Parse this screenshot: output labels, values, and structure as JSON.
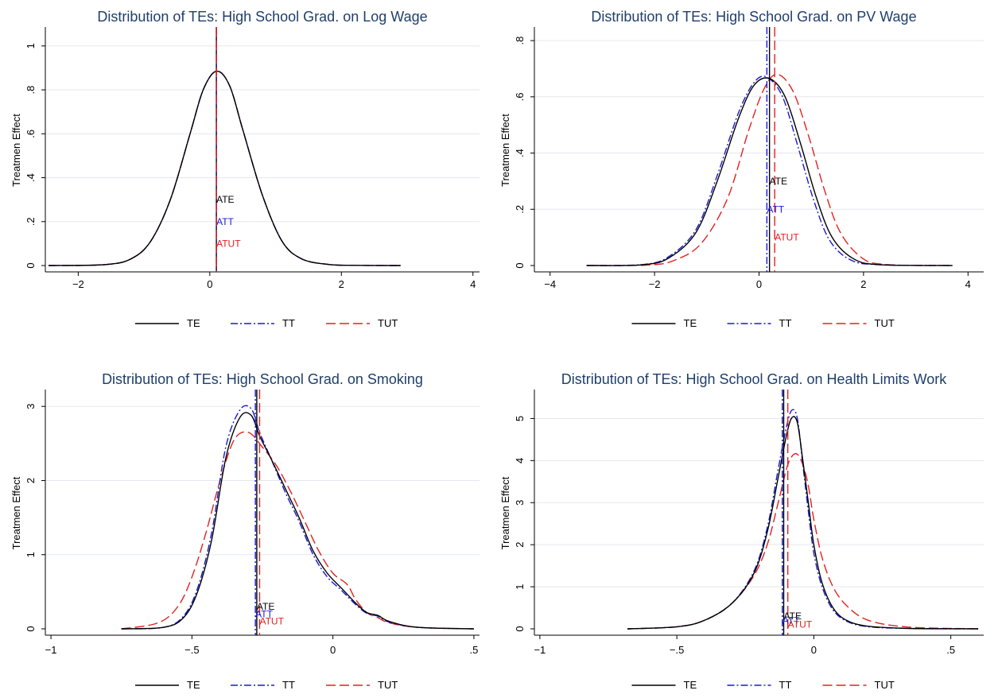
{
  "colors": {
    "TE": "#000000",
    "TT": "#1a1ad6",
    "TUT": "#e32020",
    "title": "#1f3f6b",
    "grid": "#e3e7ee"
  },
  "legend": [
    {
      "key": "TE",
      "label": "TE",
      "dash": ""
    },
    {
      "key": "TT",
      "label": "TT",
      "dash": "9,3,2,3"
    },
    {
      "key": "TUT",
      "label": "TUT",
      "dash": "12,5"
    }
  ],
  "chart_data": [
    {
      "type": "line",
      "title": "Distribution of TEs: High School Grad. on Log Wage",
      "ylabel": "Treatmen Effect",
      "xlim": [
        -2.5,
        4.1
      ],
      "ylim": [
        0,
        1.05
      ],
      "xticks": [
        {
          "v": -2,
          "t": "−2"
        },
        {
          "v": 0,
          "t": "0"
        },
        {
          "v": 2,
          "t": "2"
        },
        {
          "v": 4,
          "t": "4"
        }
      ],
      "yticks": [
        {
          "v": 0,
          "t": "0"
        },
        {
          "v": 0.2,
          "t": ".2"
        },
        {
          "v": 0.4,
          "t": ".4"
        },
        {
          "v": 0.6,
          "t": ".6"
        },
        {
          "v": 0.8,
          "t": ".8"
        },
        {
          "v": 1,
          "t": "1"
        }
      ],
      "series": [
        {
          "name": "TE",
          "x": [
            -2.45,
            -1.6,
            -1.2,
            -0.9,
            -0.6,
            -0.3,
            -0.1,
            0.1,
            0.3,
            0.5,
            0.8,
            1.1,
            1.4,
            1.8,
            2.2,
            2.9
          ],
          "y": [
            0,
            0.004,
            0.03,
            0.11,
            0.3,
            0.6,
            0.8,
            0.885,
            0.82,
            0.62,
            0.32,
            0.11,
            0.03,
            0.005,
            0.001,
            0
          ]
        },
        {
          "name": "TT",
          "x": [
            -2.45,
            -1.6,
            -1.2,
            -0.9,
            -0.6,
            -0.3,
            -0.1,
            0.1,
            0.3,
            0.5,
            0.8,
            1.1,
            1.4,
            1.8,
            2.2,
            2.9
          ],
          "y": [
            0,
            0.004,
            0.03,
            0.11,
            0.3,
            0.6,
            0.8,
            0.885,
            0.82,
            0.62,
            0.32,
            0.11,
            0.03,
            0.005,
            0.001,
            0
          ]
        },
        {
          "name": "TUT",
          "x": [
            -2.45,
            -1.6,
            -1.2,
            -0.9,
            -0.6,
            -0.3,
            -0.1,
            0.1,
            0.3,
            0.5,
            0.8,
            1.1,
            1.4,
            1.8,
            2.2,
            2.9
          ],
          "y": [
            0,
            0.004,
            0.03,
            0.11,
            0.3,
            0.6,
            0.8,
            0.885,
            0.82,
            0.62,
            0.32,
            0.11,
            0.03,
            0.005,
            0.001,
            0
          ]
        }
      ],
      "vlines": [
        {
          "key": "TE",
          "x": 0.1
        },
        {
          "key": "TT",
          "x": 0.1
        },
        {
          "key": "TUT",
          "x": 0.1
        }
      ],
      "annotations": [
        {
          "key": "TE",
          "text": "ATE",
          "x": 0.1,
          "y": 0.3
        },
        {
          "key": "TT",
          "text": "ATT",
          "x": 0.1,
          "y": 0.2
        },
        {
          "key": "TUT",
          "text": "ATUT",
          "x": 0.1,
          "y": 0.1
        }
      ]
    },
    {
      "type": "line",
      "title": "Distribution of TEs: High School Grad. on PV Wage",
      "ylabel": "Treatmen Effect",
      "xlim": [
        -4.3,
        4.3
      ],
      "ylim": [
        0,
        0.82
      ],
      "xticks": [
        {
          "v": -4,
          "t": "−4"
        },
        {
          "v": -2,
          "t": "−2"
        },
        {
          "v": 0,
          "t": "0"
        },
        {
          "v": 2,
          "t": "2"
        },
        {
          "v": 4,
          "t": "4"
        }
      ],
      "yticks": [
        {
          "v": 0,
          "t": "0"
        },
        {
          "v": 0.2,
          "t": ".2"
        },
        {
          "v": 0.4,
          "t": ".4"
        },
        {
          "v": 0.6,
          "t": ".6"
        },
        {
          "v": 0.8,
          "t": ".8"
        }
      ],
      "series": [
        {
          "name": "TE",
          "x": [
            -3.3,
            -2.2,
            -1.7,
            -1.2,
            -0.8,
            -0.4,
            -0.1,
            0.2,
            0.5,
            0.8,
            1.1,
            1.4,
            1.8,
            2.3,
            3.7
          ],
          "y": [
            0,
            0.003,
            0.03,
            0.12,
            0.3,
            0.52,
            0.64,
            0.665,
            0.6,
            0.43,
            0.24,
            0.1,
            0.025,
            0.003,
            0
          ]
        },
        {
          "name": "TT",
          "x": [
            -3.3,
            -2.2,
            -1.7,
            -1.2,
            -0.8,
            -0.4,
            -0.1,
            0.15,
            0.45,
            0.75,
            1.05,
            1.35,
            1.75,
            2.3,
            3.7
          ],
          "y": [
            0,
            0.004,
            0.035,
            0.13,
            0.32,
            0.54,
            0.65,
            0.67,
            0.6,
            0.42,
            0.23,
            0.09,
            0.02,
            0.003,
            0
          ]
        },
        {
          "name": "TUT",
          "x": [
            -3.3,
            -2.1,
            -1.6,
            -1.1,
            -0.6,
            -0.2,
            0.1,
            0.35,
            0.65,
            0.95,
            1.25,
            1.55,
            1.95,
            2.4,
            3.7
          ],
          "y": [
            0,
            0.002,
            0.02,
            0.08,
            0.24,
            0.48,
            0.63,
            0.68,
            0.62,
            0.46,
            0.27,
            0.12,
            0.03,
            0.004,
            0
          ]
        }
      ],
      "vlines": [
        {
          "key": "TE",
          "x": 0.2
        },
        {
          "key": "TT",
          "x": 0.15
        },
        {
          "key": "TUT",
          "x": 0.3
        }
      ],
      "annotations": [
        {
          "key": "TE",
          "text": "ATE",
          "x": 0.2,
          "y": 0.3
        },
        {
          "key": "TT",
          "text": "ATT",
          "x": 0.15,
          "y": 0.2
        },
        {
          "key": "TUT",
          "text": "ATUT",
          "x": 0.3,
          "y": 0.1
        }
      ]
    },
    {
      "type": "line",
      "title": "Distribution of TEs: High School Grad. on Smoking",
      "ylabel": "Treatmen Effect",
      "xlim": [
        -1.02,
        0.52
      ],
      "ylim": [
        0,
        3.12
      ],
      "xticks": [
        {
          "v": -1,
          "t": "−1"
        },
        {
          "v": -0.5,
          "t": "−.5"
        },
        {
          "v": 0,
          "t": "0"
        },
        {
          "v": 0.5,
          "t": ".5"
        }
      ],
      "yticks": [
        {
          "v": 0,
          "t": "0"
        },
        {
          "v": 1,
          "t": "1"
        },
        {
          "v": 2,
          "t": "2"
        },
        {
          "v": 3,
          "t": "3"
        }
      ],
      "series": [
        {
          "name": "TE",
          "x": [
            -0.75,
            -0.6,
            -0.53,
            -0.48,
            -0.43,
            -0.38,
            -0.33,
            -0.29,
            -0.26,
            -0.22,
            -0.17,
            -0.12,
            -0.07,
            -0.02,
            0.03,
            0.08,
            0.12,
            0.16,
            0.2,
            0.3,
            0.5
          ],
          "y": [
            0,
            0.02,
            0.15,
            0.5,
            1.2,
            2.3,
            2.85,
            2.88,
            2.6,
            2.3,
            1.9,
            1.5,
            1.05,
            0.75,
            0.55,
            0.35,
            0.22,
            0.18,
            0.1,
            0.02,
            0
          ]
        },
        {
          "name": "TT",
          "x": [
            -0.75,
            -0.6,
            -0.53,
            -0.48,
            -0.43,
            -0.38,
            -0.33,
            -0.29,
            -0.26,
            -0.22,
            -0.17,
            -0.12,
            -0.07,
            -0.02,
            0.03,
            0.08,
            0.12,
            0.16,
            0.2,
            0.3,
            0.5
          ],
          "y": [
            0,
            0.02,
            0.17,
            0.55,
            1.3,
            2.45,
            2.95,
            2.97,
            2.65,
            2.3,
            1.85,
            1.45,
            1.0,
            0.7,
            0.52,
            0.33,
            0.21,
            0.17,
            0.09,
            0.02,
            0
          ]
        },
        {
          "name": "TUT",
          "x": [
            -0.75,
            -0.62,
            -0.55,
            -0.5,
            -0.45,
            -0.4,
            -0.35,
            -0.3,
            -0.25,
            -0.2,
            -0.15,
            -0.1,
            -0.05,
            0.0,
            0.05,
            0.08,
            0.12,
            0.16,
            0.2,
            0.3,
            0.5
          ],
          "y": [
            0,
            0.08,
            0.3,
            0.7,
            1.3,
            2.0,
            2.55,
            2.65,
            2.45,
            2.2,
            1.85,
            1.45,
            1.05,
            0.75,
            0.6,
            0.4,
            0.22,
            0.15,
            0.08,
            0.02,
            0
          ]
        }
      ],
      "vlines": [
        {
          "key": "TE",
          "x": -0.27
        },
        {
          "key": "TT",
          "x": -0.275
        },
        {
          "key": "TUT",
          "x": -0.26
        }
      ],
      "annotations": [
        {
          "key": "TE",
          "text": "ATE",
          "x": -0.27,
          "y": 0.3
        },
        {
          "key": "TT",
          "text": "ATT",
          "x": -0.275,
          "y": 0.2
        },
        {
          "key": "TUT",
          "text": "ATUT",
          "x": -0.26,
          "y": 0.1
        }
      ]
    },
    {
      "type": "line",
      "title": "Distribution of TEs: High School Grad. on Health Limits Work",
      "ylabel": "Treatmen Effect",
      "xlim": [
        -1.02,
        0.62
      ],
      "ylim": [
        0,
        5.5
      ],
      "xticks": [
        {
          "v": -1,
          "t": "−1"
        },
        {
          "v": -0.5,
          "t": "−.5"
        },
        {
          "v": 0,
          "t": "0"
        },
        {
          "v": 0.5,
          "t": ".5"
        }
      ],
      "yticks": [
        {
          "v": 0,
          "t": "0"
        },
        {
          "v": 1,
          "t": "1"
        },
        {
          "v": 2,
          "t": "2"
        },
        {
          "v": 3,
          "t": "3"
        },
        {
          "v": 4,
          "t": "4"
        },
        {
          "v": 5,
          "t": "5"
        }
      ],
      "series": [
        {
          "name": "TE",
          "x": [
            -0.68,
            -0.5,
            -0.4,
            -0.3,
            -0.22,
            -0.17,
            -0.13,
            -0.1,
            -0.08,
            -0.06,
            -0.04,
            -0.02,
            0.0,
            0.03,
            0.07,
            0.12,
            0.2,
            0.35,
            0.6
          ],
          "y": [
            0,
            0.05,
            0.2,
            0.6,
            1.3,
            2.3,
            3.6,
            4.6,
            5.02,
            4.9,
            4.0,
            3.0,
            2.0,
            1.1,
            0.5,
            0.2,
            0.06,
            0.01,
            0
          ]
        },
        {
          "name": "TT",
          "x": [
            -0.68,
            -0.5,
            -0.4,
            -0.3,
            -0.22,
            -0.17,
            -0.13,
            -0.1,
            -0.08,
            -0.06,
            -0.04,
            -0.02,
            0.0,
            0.03,
            0.07,
            0.12,
            0.2,
            0.35,
            0.6
          ],
          "y": [
            0,
            0.05,
            0.2,
            0.6,
            1.35,
            2.4,
            3.8,
            4.8,
            5.2,
            5.0,
            3.9,
            2.8,
            1.8,
            1.0,
            0.45,
            0.18,
            0.05,
            0.01,
            0
          ]
        },
        {
          "name": "TUT",
          "x": [
            -0.68,
            -0.5,
            -0.4,
            -0.3,
            -0.22,
            -0.17,
            -0.13,
            -0.1,
            -0.08,
            -0.06,
            -0.04,
            -0.02,
            0.0,
            0.03,
            0.07,
            0.12,
            0.2,
            0.35,
            0.6
          ],
          "y": [
            0,
            0.05,
            0.2,
            0.6,
            1.25,
            2.0,
            3.0,
            3.8,
            4.1,
            4.15,
            3.9,
            3.4,
            2.6,
            1.7,
            1.0,
            0.55,
            0.2,
            0.04,
            0
          ]
        }
      ],
      "vlines": [
        {
          "key": "TE",
          "x": -0.11
        },
        {
          "key": "TT",
          "x": -0.115
        },
        {
          "key": "TUT",
          "x": -0.095
        }
      ],
      "annotations": [
        {
          "key": "TE",
          "text": "ATE",
          "x": -0.11,
          "y": 0.3
        },
        {
          "key": "TT",
          "text": "ATT",
          "x": -0.115,
          "y": 0.2
        },
        {
          "key": "TUT",
          "text": "ATUT",
          "x": -0.095,
          "y": 0.1
        }
      ]
    }
  ]
}
